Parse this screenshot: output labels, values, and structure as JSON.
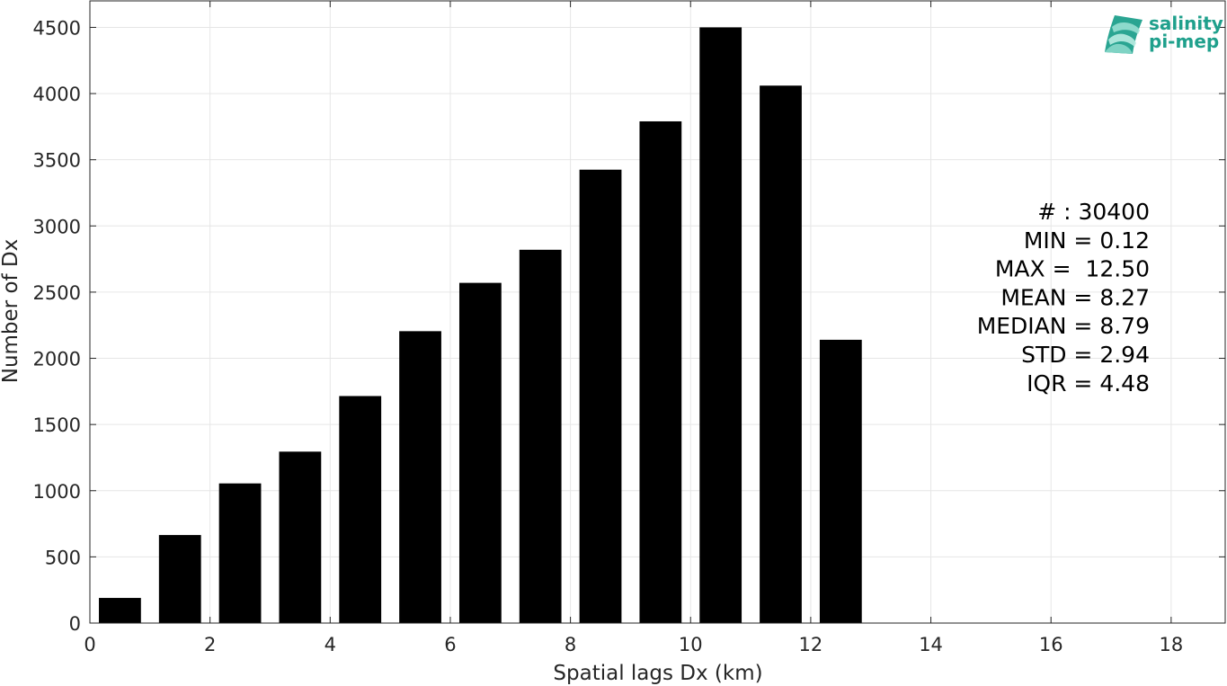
{
  "chart_data": {
    "type": "bar",
    "title": "",
    "xlabel": "Spatial lags Dx (km)",
    "ylabel": "Number of Dx",
    "xlim": [
      0,
      18.9
    ],
    "ylim": [
      0,
      4700
    ],
    "xticks": [
      0,
      2,
      4,
      6,
      8,
      10,
      12,
      14,
      16,
      18
    ],
    "yticks": [
      0,
      500,
      1000,
      1500,
      2000,
      2500,
      3000,
      3500,
      4000,
      4500
    ],
    "grid": true,
    "bar_color": "#000000",
    "bin_width": 1,
    "bar_width": 0.7,
    "bins": [
      {
        "center": 0.5,
        "value": 190
      },
      {
        "center": 1.5,
        "value": 665
      },
      {
        "center": 2.5,
        "value": 1055
      },
      {
        "center": 3.5,
        "value": 1295
      },
      {
        "center": 4.5,
        "value": 1715
      },
      {
        "center": 5.5,
        "value": 2205
      },
      {
        "center": 6.5,
        "value": 2570
      },
      {
        "center": 7.5,
        "value": 2820
      },
      {
        "center": 8.5,
        "value": 3425
      },
      {
        "center": 9.5,
        "value": 3790
      },
      {
        "center": 10.5,
        "value": 4500
      },
      {
        "center": 11.5,
        "value": 4060
      },
      {
        "center": 12.5,
        "value": 2140
      }
    ],
    "annotations": [
      "# : 30400",
      "MIN = 0.12",
      "MAX =  12.50",
      "MEAN = 8.27",
      "MEDIAN = 8.79",
      "STD = 2.94",
      "IQR = 4.48"
    ]
  },
  "logo": {
    "line1": "salinity",
    "line2": "pi-mep",
    "color": "#1fa08c"
  }
}
